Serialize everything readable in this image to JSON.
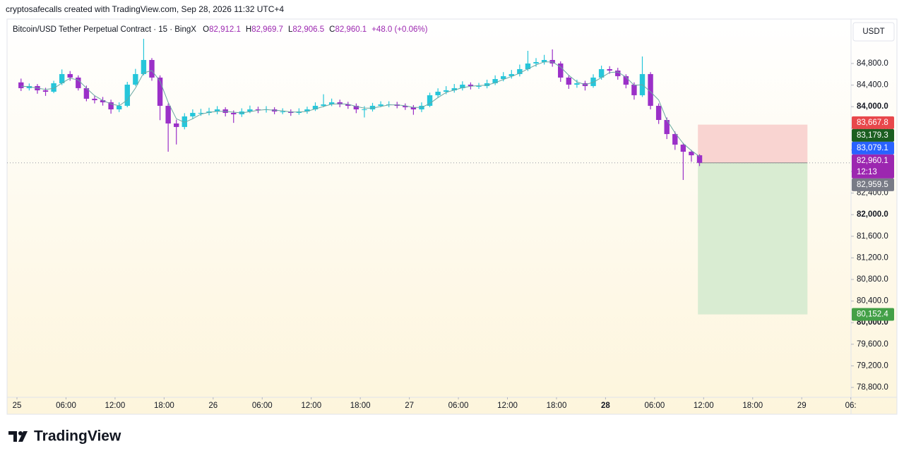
{
  "header": {
    "caption": "cryptosafecalls created with TradingView.com, Sep 28, 2026 11:32 UTC+4"
  },
  "footer": {
    "brand": "TradingView"
  },
  "chart_data": {
    "type": "candlestick",
    "title": "Bitcoin/USD Tether Perpetual Contract · 15 · BingX",
    "legend": [
      {
        "key": "O",
        "value": "82,912.1"
      },
      {
        "key": "H",
        "value": "82,969.7"
      },
      {
        "key": "L",
        "value": "82,906.5"
      },
      {
        "key": "C",
        "value": "82,960.1"
      }
    ],
    "change": "+48.0 (+0.06%)",
    "currency": "USDT",
    "up_color": "#26c6da",
    "down_color": "#9b30c8",
    "x": [
      0,
      1,
      2,
      3,
      4,
      5,
      6,
      7,
      8,
      9,
      10,
      11,
      12,
      13,
      14,
      15,
      16,
      17,
      18,
      19,
      20,
      21,
      22,
      23,
      24,
      25,
      26,
      27,
      28,
      29,
      30,
      31,
      32,
      33,
      34,
      35,
      36,
      37,
      38,
      39,
      40,
      41,
      42,
      43,
      44,
      45,
      46,
      47,
      48,
      49,
      50,
      51,
      52,
      53,
      54,
      55,
      56,
      57,
      58,
      59,
      60,
      61,
      62,
      63,
      64,
      65,
      66,
      67,
      68,
      69,
      70,
      71,
      72,
      73,
      74,
      75,
      76,
      77,
      78,
      79,
      80,
      81,
      82,
      83
    ],
    "open": [
      84450,
      84343,
      84382,
      84303,
      84277,
      84434,
      84604,
      84539,
      84343,
      84147,
      84120,
      84081,
      83950,
      84016,
      84408,
      84604,
      84865,
      84539,
      84016,
      83689,
      83624,
      83820,
      83885,
      83885,
      83911,
      83950,
      83885,
      83859,
      83911,
      83950,
      83937,
      83950,
      83911,
      83911,
      83885,
      83911,
      83950,
      84016,
      84042,
      84081,
      84042,
      84016,
      83950,
      83950,
      84016,
      84042,
      84042,
      84016,
      83990,
      83950,
      84016,
      84212,
      84277,
      84303,
      84343,
      84408,
      84382,
      84382,
      84434,
      84512,
      84565,
      84604,
      84695,
      84800,
      84826,
      84865,
      84800,
      84539,
      84408,
      84434,
      84382,
      84539,
      84695,
      84669,
      84565,
      84408,
      84212,
      84604,
      84016,
      83754,
      83493,
      83297,
      83166,
      83100
    ],
    "high": [
      84520,
      84430,
      84420,
      84350,
      84480,
      84690,
      84660,
      84580,
      84390,
      84200,
      84180,
      84130,
      84080,
      84460,
      84700,
      85257,
      84900,
      84580,
      84060,
      83760,
      83880,
      83950,
      83960,
      83980,
      84010,
      83990,
      83930,
      83970,
      84020,
      84000,
      84010,
      83990,
      83970,
      83950,
      83970,
      84000,
      84080,
      84230,
      84150,
      84130,
      84090,
      84060,
      84010,
      84070,
      84100,
      84100,
      84090,
      84060,
      84030,
      84080,
      84260,
      84340,
      84380,
      84420,
      84470,
      84450,
      84440,
      84500,
      84580,
      84640,
      84680,
      84780,
      85035,
      84900,
      84960,
      85061,
      84840,
      84580,
      84500,
      84480,
      84600,
      84760,
      84750,
      84720,
      84600,
      84450,
      84930,
      84640,
      84060,
      83800,
      83540,
      83330,
      83200,
      83120
    ],
    "low": [
      84290,
      84300,
      84240,
      84200,
      84250,
      84400,
      84480,
      84300,
      84100,
      84060,
      84020,
      83870,
      83900,
      83990,
      84380,
      84580,
      84480,
      83750,
      83166,
      83300,
      83580,
      83780,
      83830,
      83840,
      83860,
      83820,
      83700,
      83810,
      83880,
      83880,
      83890,
      83860,
      83860,
      83830,
      83850,
      83870,
      83920,
      83990,
      84010,
      83990,
      83960,
      83880,
      83800,
      83910,
      83990,
      83990,
      83970,
      83940,
      83850,
      83900,
      83990,
      84170,
      84230,
      84260,
      84300,
      84320,
      84330,
      84340,
      84400,
      84470,
      84520,
      84560,
      84660,
      84740,
      84780,
      84740,
      84460,
      84330,
      84350,
      84300,
      84350,
      84500,
      84610,
      84500,
      84340,
      84130,
      84180,
      83950,
      83680,
      83400,
      83200,
      82643,
      82980,
      82900
    ],
    "close": [
      84343,
      84382,
      84303,
      84277,
      84434,
      84604,
      84539,
      84343,
      84147,
      84120,
      84081,
      83950,
      84016,
      84408,
      84604,
      84865,
      84539,
      84016,
      83689,
      83624,
      83820,
      83885,
      83885,
      83911,
      83950,
      83885,
      83859,
      83911,
      83950,
      83937,
      83950,
      83911,
      83911,
      83885,
      83911,
      83950,
      84016,
      84042,
      84081,
      84042,
      84016,
      83950,
      83950,
      84016,
      84042,
      84042,
      84016,
      83990,
      83950,
      84016,
      84212,
      84277,
      84303,
      84343,
      84408,
      84382,
      84382,
      84434,
      84512,
      84565,
      84604,
      84695,
      84800,
      84826,
      84865,
      84800,
      84539,
      84408,
      84434,
      84382,
      84539,
      84695,
      84669,
      84565,
      84408,
      84212,
      84604,
      84016,
      83754,
      83493,
      83297,
      83166,
      83100,
      82960
    ],
    "ma_lines": [
      {
        "color": "#6aa7a2",
        "values": [
          84380,
          84370,
          84343,
          84320,
          84338,
          84438,
          84526,
          84495,
          84343,
          84203,
          84116,
          84050,
          84016,
          84125,
          84343,
          84626,
          84669,
          84473,
          84081,
          83776,
          83711,
          83776,
          83863,
          83894,
          83915,
          83915,
          83898,
          83885,
          83907,
          83933,
          83946,
          83933,
          83924,
          83902,
          83902,
          83915,
          83959,
          84003,
          84046,
          84055,
          84046,
          84003,
          83972,
          83972,
          84003,
          84033,
          84033,
          84016,
          83985,
          83985,
          84059,
          84168,
          84264,
          84308,
          84351,
          84378,
          84391,
          84399,
          84443,
          84504,
          84560,
          84621,
          84700,
          84774,
          84830,
          84830,
          84735,
          84582,
          84460,
          84408,
          84452,
          84539,
          84634,
          84643,
          84547,
          84395,
          84408,
          84277,
          84125,
          83754,
          83515,
          83319,
          83188,
          83075
        ]
      }
    ],
    "xlim": [
      -1.21,
      102.03
    ],
    "ylim": [
      78617,
      85623
    ],
    "xticks": [
      {
        "value": 0,
        "label": "25"
      },
      {
        "value": 6,
        "label": "06:00"
      },
      {
        "value": 12,
        "label": "12:00"
      },
      {
        "value": 18,
        "label": "18:00"
      },
      {
        "value": 24,
        "label": "26"
      },
      {
        "value": 30,
        "label": "06:00"
      },
      {
        "value": 36,
        "label": "12:00"
      },
      {
        "value": 42,
        "label": "18:00"
      },
      {
        "value": 48,
        "label": "27"
      },
      {
        "value": 54,
        "label": "06:00"
      },
      {
        "value": 60,
        "label": "12:00"
      },
      {
        "value": 66,
        "label": "18:00"
      },
      {
        "value": 72,
        "label": "28",
        "bold": true
      },
      {
        "value": 78,
        "label": "06:00"
      },
      {
        "value": 84,
        "label": "12:00"
      },
      {
        "value": 90,
        "label": "18:00"
      },
      {
        "value": 96,
        "label": "29"
      },
      {
        "value": 102,
        "label": "06:"
      }
    ],
    "yticks": [
      {
        "value": 78800,
        "label": "78,800.0"
      },
      {
        "value": 79200,
        "label": "79,200.0"
      },
      {
        "value": 79600,
        "label": "79,600.0"
      },
      {
        "value": 80000,
        "label": "80,000.0",
        "bold": true
      },
      {
        "value": 80400,
        "label": "80,400.0"
      },
      {
        "value": 80800,
        "label": "80,800.0"
      },
      {
        "value": 81200,
        "label": "81,200.0"
      },
      {
        "value": 81600,
        "label": "81,600.0"
      },
      {
        "value": 82000,
        "label": "82,000.0",
        "bold": true
      },
      {
        "value": 82400,
        "label": "82,400.0"
      },
      {
        "value": 82800,
        "label": "82,800.0"
      },
      {
        "value": 83200,
        "label": "83,200.0"
      },
      {
        "value": 83600,
        "label": "83,600.0"
      },
      {
        "value": 84000,
        "label": "84,000.0",
        "bold": true
      },
      {
        "value": 84400,
        "label": "84,400.0"
      },
      {
        "value": 84800,
        "label": "84,800.0"
      }
    ],
    "grid": false,
    "last_price": 82960.1,
    "position": {
      "x_start": 83.3,
      "x_end": 96.7,
      "entry": 82960.1,
      "stop": 83667.8,
      "target": 80152.4,
      "stop_color": "#f9d4d1",
      "target_color": "#d9ecd2"
    },
    "price_tags": [
      {
        "value": 83667.8,
        "label": "83,667.8",
        "color": "#e8474b"
      },
      {
        "value": 83179.3,
        "label": "83,179.3",
        "color": "#1b5e20"
      },
      {
        "value": 83079.1,
        "label": "83,079.1",
        "color": "#2962ff"
      },
      {
        "value": 82960.1,
        "label": "82,960.1",
        "color": "#9c27b0",
        "countdown": "12:13"
      },
      {
        "value": 82959.5,
        "label": "82,959.5",
        "color": "#787b86"
      },
      {
        "value": 80152.4,
        "label": "80,152.4",
        "color": "#43a047"
      }
    ]
  }
}
